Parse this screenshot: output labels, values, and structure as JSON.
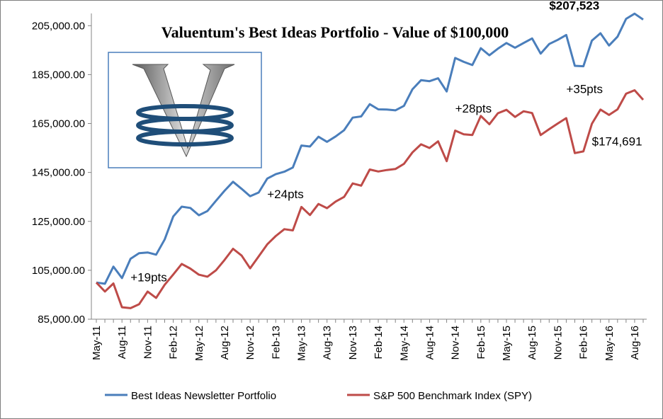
{
  "colors": {
    "portfolio": "#4a7ebb",
    "benchmark": "#be4b48",
    "logo_border": "#4a7ebb",
    "final_value_green": "#4f6228"
  },
  "logo": {
    "name": "valuentum-v-logo"
  },
  "chart_data": {
    "type": "line",
    "title": "Valuentum's Best Ideas Portfolio - Value of $100,000",
    "ylim": [
      85000,
      210000
    ],
    "yticks": [
      "85,000.00",
      "105,000.00",
      "125,000.00",
      "145,000.00",
      "165,000.00",
      "185,000.00",
      "205,000.00"
    ],
    "ytick_values": [
      85000,
      105000,
      125000,
      145000,
      165000,
      185000,
      205000
    ],
    "xtick_labels": [
      "May-11",
      "Aug-11",
      "Nov-11",
      "Feb-12",
      "May-12",
      "Aug-12",
      "Nov-12",
      "Feb-13",
      "May-13",
      "Aug-13",
      "Nov-13",
      "Feb-14",
      "May-14",
      "Aug-14",
      "Nov-14",
      "Feb-15",
      "May-15",
      "Aug-15",
      "Nov-15",
      "Feb-16",
      "May-16",
      "Aug-16"
    ],
    "x": [
      "May-11",
      "Jun-11",
      "Jul-11",
      "Aug-11",
      "Sep-11",
      "Oct-11",
      "Nov-11",
      "Dec-11",
      "Jan-12",
      "Feb-12",
      "Mar-12",
      "Apr-12",
      "May-12",
      "Jun-12",
      "Jul-12",
      "Aug-12",
      "Sep-12",
      "Oct-12",
      "Nov-12",
      "Dec-12",
      "Jan-13",
      "Feb-13",
      "Mar-13",
      "Apr-13",
      "May-13",
      "Jun-13",
      "Jul-13",
      "Aug-13",
      "Sep-13",
      "Oct-13",
      "Nov-13",
      "Dec-13",
      "Jan-14",
      "Feb-14",
      "Mar-14",
      "Apr-14",
      "May-14",
      "Jun-14",
      "Jul-14",
      "Aug-14",
      "Sep-14",
      "Oct-14",
      "Nov-14",
      "Dec-14",
      "Jan-15",
      "Feb-15",
      "Mar-15",
      "Apr-15",
      "May-15",
      "Jun-15",
      "Jul-15",
      "Aug-15",
      "Sep-15",
      "Oct-15",
      "Nov-15",
      "Dec-15",
      "Jan-16",
      "Feb-16",
      "Mar-16",
      "Apr-16",
      "May-16",
      "Jun-16",
      "Jul-16",
      "Aug-16",
      "Sep-16"
    ],
    "series": [
      {
        "name": "Best Ideas Newsletter Portfolio",
        "color_key": "portfolio",
        "values": [
          100000,
          99500,
          106500,
          101800,
          109700,
          112000,
          112300,
          111400,
          117600,
          127000,
          131000,
          130500,
          127500,
          129200,
          133400,
          137500,
          141200,
          138300,
          135300,
          136800,
          142500,
          144300,
          145300,
          147000,
          156000,
          155600,
          159600,
          157500,
          159700,
          162300,
          167400,
          167900,
          172900,
          170800,
          170700,
          170400,
          172200,
          179000,
          182700,
          182300,
          183500,
          178100,
          191800,
          190200,
          188900,
          195800,
          192900,
          195600,
          197900,
          196000,
          197900,
          199800,
          193600,
          197500,
          199200,
          201200,
          188600,
          188400,
          198900,
          201900,
          196900,
          200500,
          207800,
          209900,
          207500
        ]
      },
      {
        "name": "S&P 500 Benchmark Index (SPY)",
        "color_key": "benchmark",
        "values": [
          100000,
          96300,
          99600,
          89900,
          89500,
          91100,
          96300,
          93700,
          99100,
          103300,
          107600,
          105700,
          103200,
          102400,
          105000,
          109200,
          113800,
          111000,
          105800,
          110700,
          115600,
          119000,
          121800,
          121300,
          130900,
          127600,
          132100,
          130400,
          133100,
          135000,
          140500,
          139600,
          146200,
          145400,
          146000,
          146400,
          148500,
          153200,
          156500,
          155000,
          157700,
          149600,
          162100,
          160600,
          160300,
          168100,
          164700,
          169200,
          170600,
          167700,
          170000,
          169300,
          160300,
          162700,
          165000,
          167200,
          152900,
          153600,
          164900,
          170700,
          168500,
          170800,
          177200,
          178600,
          174700
        ]
      }
    ],
    "annotations": [
      {
        "text": "+19pts",
        "x": "Sep-11",
        "y": 100500
      },
      {
        "text": "+24pts",
        "x": "Jan-13",
        "y": 134500
      },
      {
        "text": "+28pts",
        "x": "Nov-14",
        "y": 169500
      },
      {
        "text": "+35pts",
        "x": "Dec-15",
        "y": 177500
      },
      {
        "text": "$207,523",
        "x": "Oct-15",
        "y": 211600,
        "style": "green"
      },
      {
        "text": "$174,691",
        "x": "Mar-16",
        "y": 156100
      }
    ],
    "legend": [
      "Best Ideas Newsletter Portfolio",
      "S&P 500 Benchmark Index (SPY)"
    ],
    "legend_position": "bottom",
    "grid": false
  }
}
